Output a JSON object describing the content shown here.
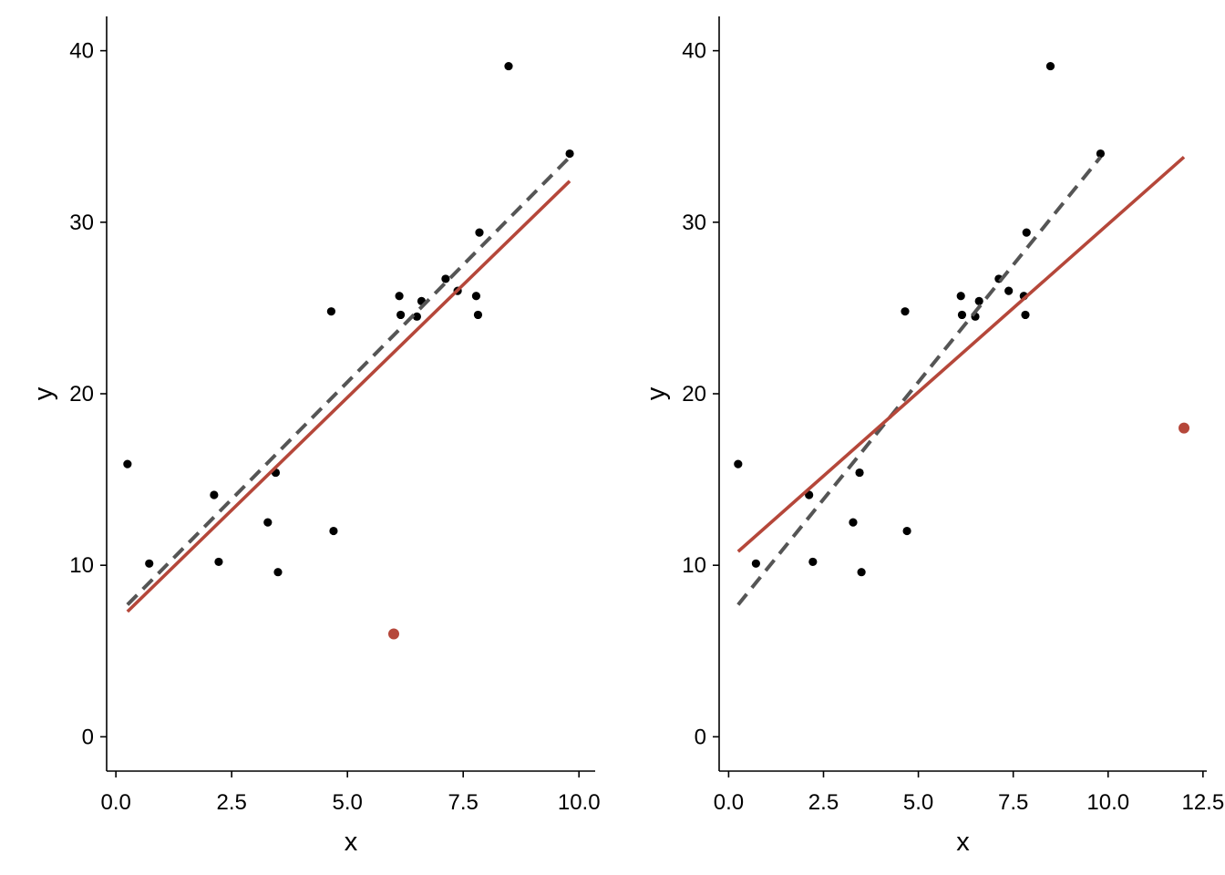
{
  "colors": {
    "points": "#000000",
    "highlight": "#b5473a",
    "fit_highlight": "#b5473a",
    "fit_reference": "#555555",
    "axis": "#000000"
  },
  "chart_data": [
    {
      "type": "scatter",
      "title": "",
      "xlabel": "x",
      "ylabel": "y",
      "xlim": [
        -0.2,
        10.35
      ],
      "ylim": [
        -2,
        42
      ],
      "xticks": [
        0,
        2.5,
        5,
        7.5,
        10
      ],
      "xtick_labels": [
        "0.0",
        "2.5",
        "5.0",
        "7.5",
        "10.0"
      ],
      "yticks": [
        0,
        10,
        20,
        30,
        40
      ],
      "ytick_labels": [
        "0",
        "10",
        "20",
        "30",
        "40"
      ],
      "grid": false,
      "series": [
        {
          "role": "observations",
          "points": [
            [
              0.25,
              15.9
            ],
            [
              0.72,
              10.1
            ],
            [
              2.12,
              14.1
            ],
            [
              2.22,
              10.2
            ],
            [
              3.28,
              12.5
            ],
            [
              3.45,
              15.4
            ],
            [
              3.5,
              9.6
            ],
            [
              4.65,
              24.8
            ],
            [
              4.7,
              12.0
            ],
            [
              6.12,
              25.7
            ],
            [
              6.15,
              24.6
            ],
            [
              6.5,
              24.5
            ],
            [
              6.6,
              25.4
            ],
            [
              7.12,
              26.7
            ],
            [
              7.38,
              26.0
            ],
            [
              7.78,
              25.7
            ],
            [
              7.82,
              24.6
            ],
            [
              7.85,
              29.4
            ],
            [
              8.48,
              39.1
            ],
            [
              9.8,
              34.0
            ]
          ]
        },
        {
          "role": "added-point",
          "points": [
            [
              6.0,
              6.0
            ]
          ]
        },
        {
          "role": "fit-original",
          "line": [
            [
              0.25,
              7.7
            ],
            [
              9.8,
              33.8
            ]
          ],
          "style": "dashed"
        },
        {
          "role": "fit-with-added-point",
          "line": [
            [
              0.25,
              7.3
            ],
            [
              9.8,
              32.4
            ]
          ],
          "style": "solid"
        }
      ]
    },
    {
      "type": "scatter",
      "title": "",
      "xlabel": "x",
      "ylabel": "y",
      "xlim": [
        -0.25,
        12.6
      ],
      "ylim": [
        -2,
        42
      ],
      "xticks": [
        0,
        2.5,
        5,
        7.5,
        10,
        12.5
      ],
      "xtick_labels": [
        "0.0",
        "2.5",
        "5.0",
        "7.5",
        "10.0",
        "12.5"
      ],
      "yticks": [
        0,
        10,
        20,
        30,
        40
      ],
      "ytick_labels": [
        "0",
        "10",
        "20",
        "30",
        "40"
      ],
      "grid": false,
      "series": [
        {
          "role": "observations",
          "points": [
            [
              0.25,
              15.9
            ],
            [
              0.72,
              10.1
            ],
            [
              2.12,
              14.1
            ],
            [
              2.22,
              10.2
            ],
            [
              3.28,
              12.5
            ],
            [
              3.45,
              15.4
            ],
            [
              3.5,
              9.6
            ],
            [
              4.65,
              24.8
            ],
            [
              4.7,
              12.0
            ],
            [
              6.12,
              25.7
            ],
            [
              6.15,
              24.6
            ],
            [
              6.5,
              24.5
            ],
            [
              6.6,
              25.4
            ],
            [
              7.12,
              26.7
            ],
            [
              7.38,
              26.0
            ],
            [
              7.78,
              25.7
            ],
            [
              7.82,
              24.6
            ],
            [
              7.85,
              29.4
            ],
            [
              8.48,
              39.1
            ],
            [
              9.8,
              34.0
            ]
          ]
        },
        {
          "role": "added-point",
          "points": [
            [
              12.0,
              18.0
            ]
          ]
        },
        {
          "role": "fit-original",
          "line": [
            [
              0.25,
              7.7
            ],
            [
              9.8,
              33.8
            ]
          ],
          "style": "dashed"
        },
        {
          "role": "fit-with-added-point",
          "line": [
            [
              0.25,
              10.8
            ],
            [
              12.0,
              33.8
            ]
          ],
          "style": "solid"
        }
      ]
    }
  ]
}
